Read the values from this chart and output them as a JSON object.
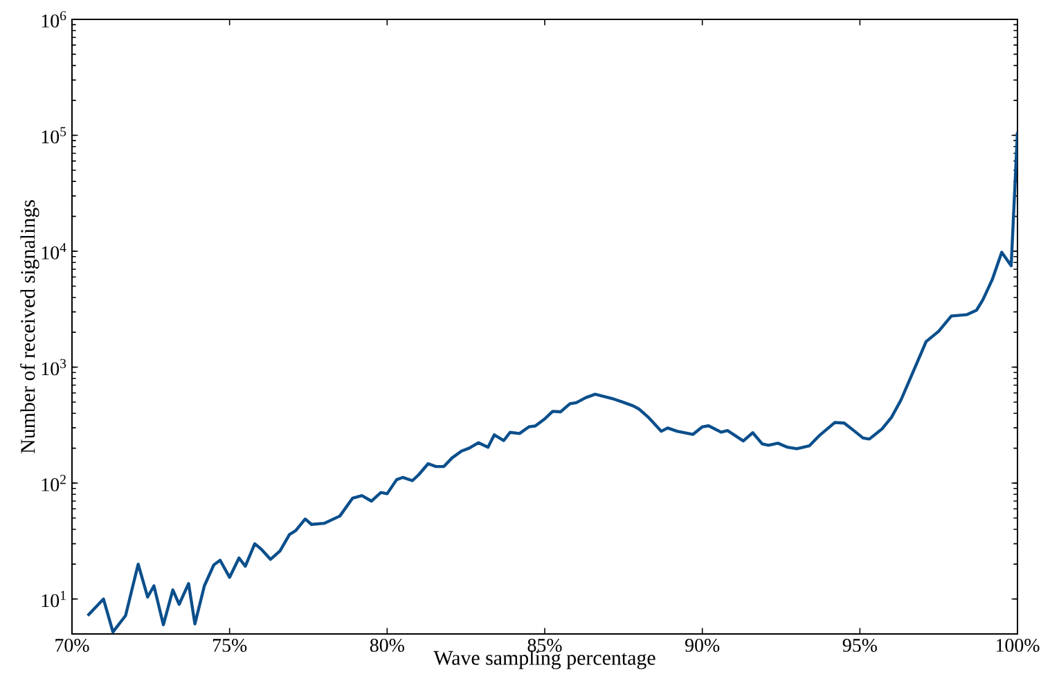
{
  "chart_data": {
    "type": "line",
    "xlabel": "Wave sampling percentage",
    "ylabel": "Number of received signalings",
    "log": "y",
    "grid": false,
    "marker": "none",
    "line_style": "solid",
    "xlim": [
      70,
      100
    ],
    "ylim": [
      5,
      1000000
    ],
    "xticks": [
      {
        "value": 70,
        "label": "70%"
      },
      {
        "value": 75,
        "label": "75%"
      },
      {
        "value": 80,
        "label": "80%"
      },
      {
        "value": 85,
        "label": "85%"
      },
      {
        "value": 90,
        "label": "90%"
      },
      {
        "value": 95,
        "label": "95%"
      },
      {
        "value": 100,
        "label": "100%"
      }
    ],
    "yticks": [
      {
        "value": 10,
        "label": "10$^{1}$"
      },
      {
        "value": 100,
        "label": "10$^{2}$"
      },
      {
        "value": 1000,
        "label": "10$^{3}$"
      },
      {
        "value": 10000,
        "label": "10$^{4}$"
      },
      {
        "value": 100000,
        "label": "10$^{5}$"
      },
      {
        "value": 1000000,
        "label": "10$^{6}$"
      }
    ],
    "series": [
      {
        "color": "#0b4f8c",
        "x": [
          70.5,
          71.0,
          71.3,
          71.7,
          72.1,
          72.4,
          72.6,
          72.9,
          73.2,
          73.4,
          73.7,
          73.9,
          74.2,
          74.5,
          74.7,
          75.0,
          75.3,
          75.5,
          75.8,
          76.0,
          76.3,
          76.6,
          76.9,
          77.1,
          77.4,
          77.6,
          78.0,
          78.5,
          78.9,
          79.2,
          79.5,
          79.8,
          80.0,
          80.3,
          80.5,
          80.8,
          81.0,
          81.3,
          81.55,
          81.8,
          82.06,
          82.36,
          82.6,
          82.9,
          83.2,
          83.4,
          83.7,
          83.9,
          84.2,
          84.5,
          84.7,
          85.0,
          85.25,
          85.5,
          85.8,
          86.0,
          86.3,
          86.6,
          86.9,
          87.2,
          87.5,
          87.8,
          88.0,
          88.3,
          88.7,
          88.9,
          89.2,
          89.7,
          90.0,
          90.2,
          90.6,
          90.8,
          91.3,
          91.6,
          91.9,
          92.1,
          92.4,
          92.7,
          93.0,
          93.4,
          93.7,
          94.2,
          94.5,
          94.8,
          95.1,
          95.3,
          95.7,
          96.0,
          96.3,
          96.6,
          96.9,
          97.1,
          97.5,
          97.9,
          98.4,
          98.7,
          98.9,
          99.2,
          99.5,
          99.8,
          100.0
        ],
        "values": [
          7.2,
          10,
          5.2,
          7.2,
          20,
          10.4,
          13,
          6,
          12,
          9,
          13.6,
          6.1,
          13,
          19.7,
          21.6,
          15.4,
          22.6,
          19.2,
          30,
          27,
          22,
          26,
          36,
          39,
          49,
          44,
          45,
          52,
          74,
          78,
          70,
          83,
          81,
          107,
          112,
          105,
          118,
          147,
          139,
          139,
          165,
          189,
          200,
          223,
          204,
          261,
          233,
          274,
          268,
          306,
          311,
          358,
          416,
          412,
          484,
          494,
          546,
          584,
          557,
          530,
          497,
          464,
          434,
          367,
          280,
          299,
          280,
          263,
          306,
          312,
          275,
          284,
          231,
          272,
          218,
          212,
          221,
          204,
          198,
          210,
          255,
          333,
          330,
          285,
          245,
          240,
          293,
          369,
          519,
          801,
          1240,
          1660,
          2040,
          2760,
          2840,
          3100,
          3800,
          5700,
          9800,
          7500,
          107000
        ]
      }
    ]
  }
}
